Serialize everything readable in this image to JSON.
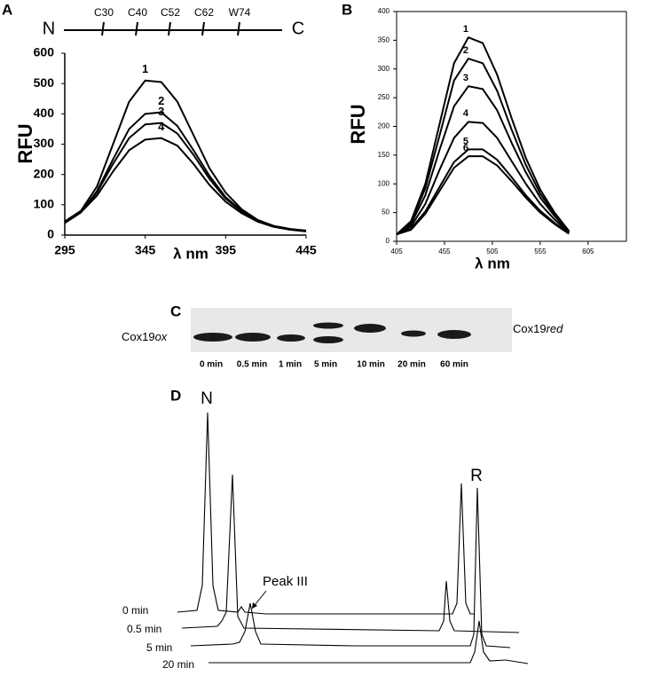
{
  "chart_data": [
    {
      "type": "line",
      "label": "A",
      "ylabel": "RFU",
      "xlabel": "λ nm",
      "domain_map": {
        "n_term": "N",
        "c_term": "C",
        "sites": [
          "C30",
          "C40",
          "C52",
          "C62",
          "W74"
        ]
      },
      "x": [
        295,
        305,
        315,
        325,
        335,
        345,
        355,
        365,
        375,
        385,
        395,
        405,
        415,
        425,
        435,
        445
      ],
      "xlim": [
        295,
        445
      ],
      "xticks": [
        295,
        345,
        395,
        445
      ],
      "ylim": [
        0,
        600
      ],
      "yticks": [
        0,
        100,
        200,
        300,
        400,
        500,
        600
      ],
      "series": [
        {
          "name": "1",
          "color": "#000000",
          "values": [
            45,
            80,
            160,
            300,
            440,
            510,
            505,
            440,
            330,
            220,
            140,
            85,
            50,
            30,
            20,
            15
          ]
        },
        {
          "name": "2",
          "color": "#000000",
          "values": [
            40,
            75,
            145,
            250,
            350,
            400,
            405,
            360,
            280,
            195,
            125,
            80,
            48,
            30,
            20,
            14
          ]
        },
        {
          "name": "3",
          "color": "#000000",
          "values": [
            40,
            75,
            140,
            235,
            320,
            365,
            370,
            335,
            265,
            185,
            120,
            78,
            46,
            28,
            18,
            13
          ]
        },
        {
          "name": "4",
          "color": "#000000",
          "values": [
            40,
            75,
            130,
            210,
            280,
            315,
            320,
            295,
            235,
            165,
            110,
            72,
            44,
            27,
            18,
            12
          ]
        }
      ]
    },
    {
      "type": "line",
      "label": "B",
      "ylabel": "RFU",
      "xlabel": "λ nm",
      "x": [
        405,
        420,
        435,
        450,
        465,
        480,
        495,
        510,
        525,
        540,
        555,
        570,
        585
      ],
      "xlim": [
        405,
        645
      ],
      "xticks": [
        405,
        455,
        505,
        555,
        605
      ],
      "ylim": [
        0,
        400
      ],
      "yticks": [
        0,
        50,
        100,
        150,
        200,
        250,
        300,
        350,
        400
      ],
      "series": [
        {
          "name": "1",
          "color": "#000000",
          "values": [
            12,
            35,
            100,
            205,
            310,
            355,
            345,
            290,
            215,
            145,
            90,
            50,
            18
          ]
        },
        {
          "name": "2",
          "color": "#000000",
          "values": [
            12,
            33,
            92,
            185,
            280,
            318,
            310,
            262,
            195,
            133,
            83,
            47,
            17
          ]
        },
        {
          "name": "3",
          "color": "#000000",
          "values": [
            12,
            30,
            80,
            160,
            235,
            270,
            265,
            228,
            172,
            120,
            76,
            44,
            16
          ]
        },
        {
          "name": "4",
          "color": "#000000",
          "values": [
            12,
            26,
            65,
            125,
            180,
            208,
            206,
            180,
            140,
            100,
            65,
            38,
            15
          ]
        },
        {
          "name": "5",
          "color": "#000000",
          "values": [
            12,
            22,
            52,
            95,
            138,
            160,
            160,
            142,
            112,
            80,
            53,
            32,
            14
          ]
        },
        {
          "name": "6",
          "color": "#000000",
          "values": [
            12,
            20,
            48,
            88,
            128,
            148,
            148,
            132,
            105,
            76,
            50,
            30,
            13
          ]
        }
      ]
    }
  ],
  "panel_c": {
    "label": "C",
    "left_label": {
      "text": "Cox19",
      "italic": "ox"
    },
    "right_label": {
      "text": "Cox19",
      "italic": "red"
    },
    "lanes": [
      "0 min",
      "0.5 min",
      "1 min",
      "5 min",
      "10  min",
      "20 min",
      "60 min"
    ]
  },
  "panel_d": {
    "label": "D",
    "peak_n": "N",
    "peak_r": "R",
    "peak_iii": "Peak III",
    "traces": [
      "0 min",
      "0.5 min",
      "5 min",
      "20 min"
    ]
  }
}
